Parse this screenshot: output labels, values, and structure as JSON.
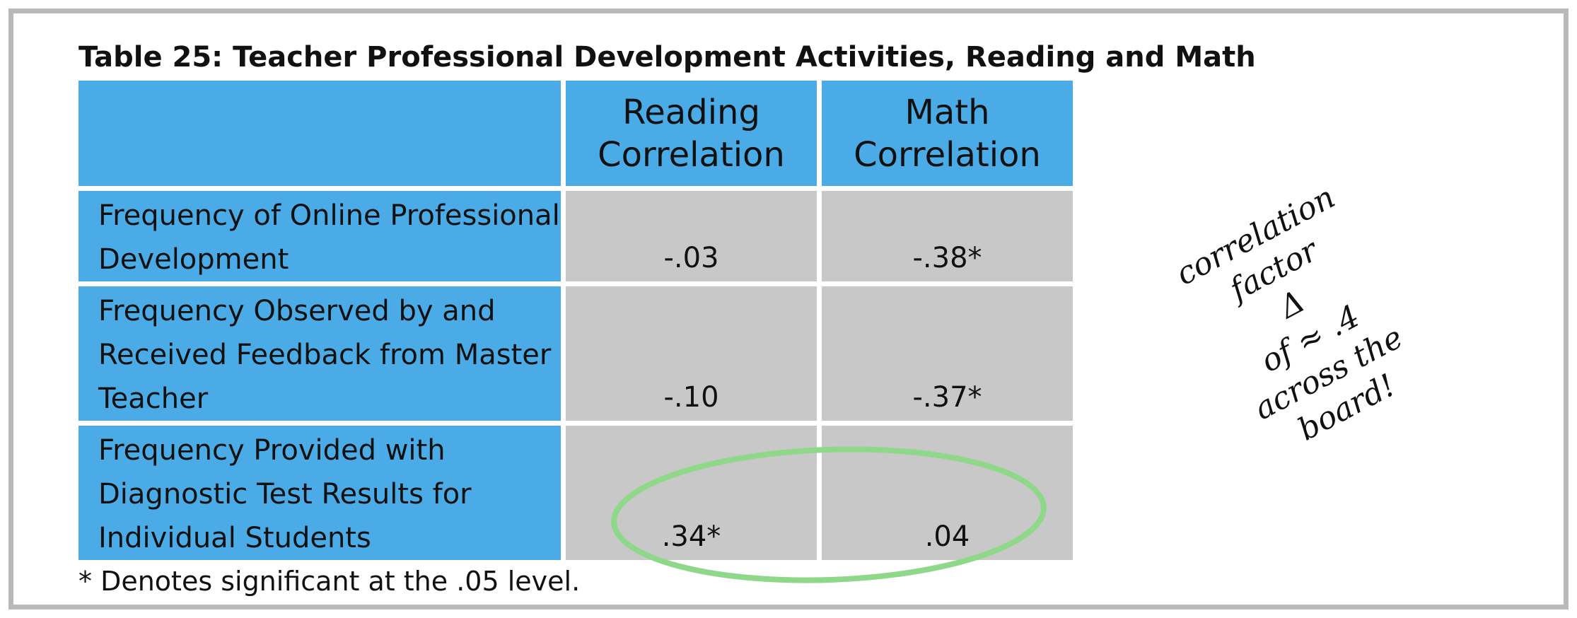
{
  "title": "Table 25: Teacher Professional Development Activities, Reading and Math",
  "table": {
    "columns": [
      "Reading Correlation",
      "Math Correlation"
    ],
    "rows": [
      [
        "Frequency of Online Professional Development",
        "-.03",
        "-.38*"
      ],
      [
        "Frequency Observed by and Received Feedback from Master Teacher",
        "-.10",
        "-.37*"
      ],
      [
        "Frequency Provided with Diagnostic Test Results for Individual Students",
        ".34*",
        ".04"
      ]
    ]
  },
  "footnote": "* Denotes significant at the .05 level.",
  "annotation": [
    "correlation",
    "factor",
    "Δ",
    "of ≈ .4",
    "across the",
    "board!"
  ]
}
